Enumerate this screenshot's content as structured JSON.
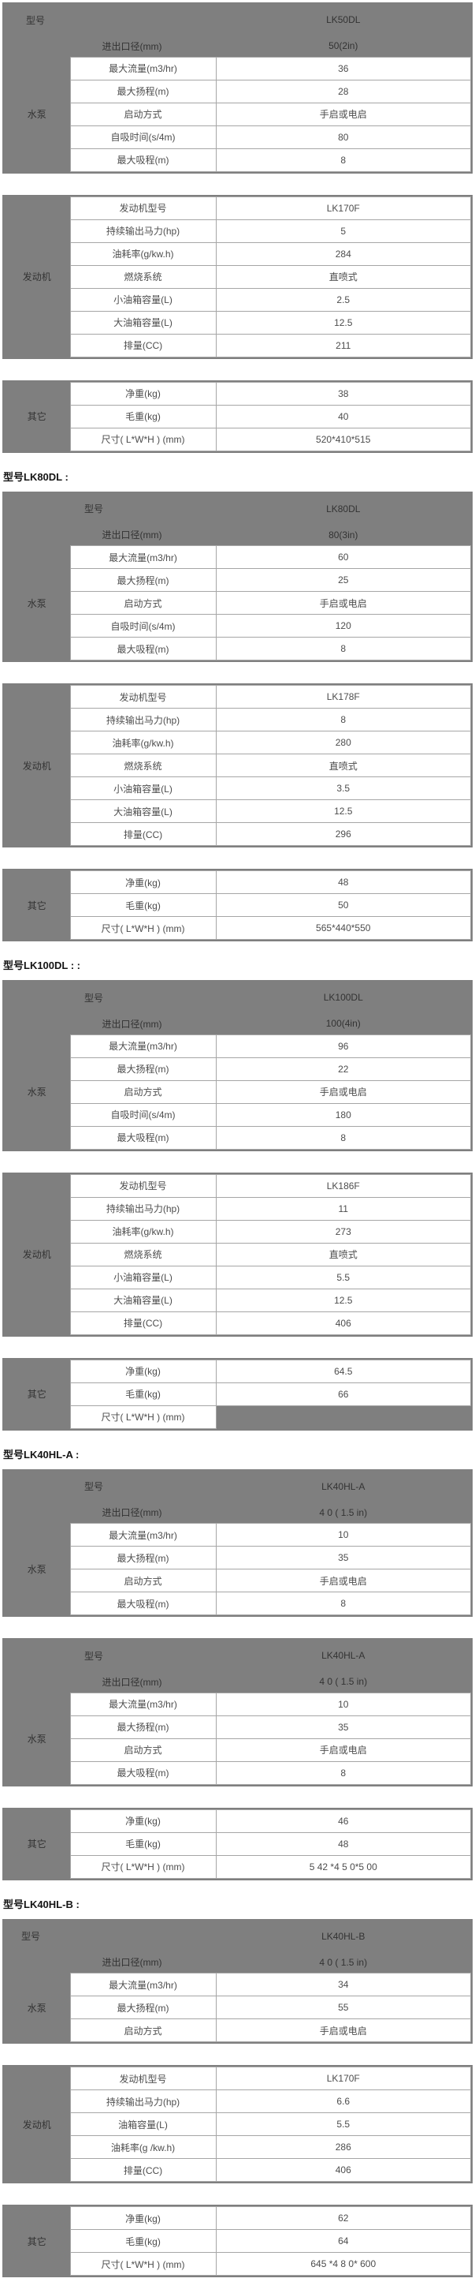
{
  "page": {
    "background": "#ffffff",
    "panel_color": "#7f7f7f",
    "cell_text_color": "#4d4d4d",
    "header_text_color": "#333333",
    "border_color": "#a6a6a6"
  },
  "titles": [
    "型号LK80DL :",
    "型号LK100DL : :",
    "型号LK40HL-A :",
    "型号LK40HL-B :"
  ],
  "tables": [
    {
      "category": "水泵",
      "header": {
        "model_label": "型号",
        "model": "LK50DL",
        "diameter_label": "进出口径(mm)",
        "diameter": "50(2in)"
      },
      "rows": [
        {
          "label": "最大流量(m3/hr)",
          "value": "36"
        },
        {
          "label": "最大扬程(m)",
          "value": "28"
        },
        {
          "label": "启动方式",
          "value": "手启或电启"
        },
        {
          "label": "自吸时间(s/4m)",
          "value": "80"
        },
        {
          "label": "最大吸程(m)",
          "value": "8"
        }
      ]
    },
    {
      "category": "发动机",
      "rows": [
        {
          "label": "发动机型号",
          "value": "LK170F"
        },
        {
          "label": "持续输出马力(hp)",
          "value": "5"
        },
        {
          "label": "油耗率(g/kw.h)",
          "value": "284"
        },
        {
          "label": "燃烧系统",
          "value": "直喷式"
        },
        {
          "label": "小油箱容量(L)",
          "value": "2.5"
        },
        {
          "label": "大油箱容量(L)",
          "value": "12.5"
        },
        {
          "label": "排量(CC)",
          "value": "211"
        }
      ]
    },
    {
      "category": "其它",
      "rows": [
        {
          "label": "净重(kg)",
          "value": "38"
        },
        {
          "label": "毛重(kg)",
          "value": "40"
        },
        {
          "label": "尺寸( L*W*H ) (mm)",
          "value": "520*410*515"
        }
      ]
    },
    {
      "category": "水泵",
      "header": {
        "model_label": "型号",
        "model": "LK80DL",
        "diameter_label": "进出口径(mm)",
        "diameter": "80(3in)"
      },
      "rows": [
        {
          "label": "最大流量(m3/hr)",
          "value": "60"
        },
        {
          "label": "最大扬程(m)",
          "value": "25"
        },
        {
          "label": "启动方式",
          "value": "手启或电启"
        },
        {
          "label": "自吸时间(s/4m)",
          "value": "120"
        },
        {
          "label": "最大吸程(m)",
          "value": "8"
        }
      ]
    },
    {
      "category": "发动机",
      "rows": [
        {
          "label": "发动机型号",
          "value": "LK178F"
        },
        {
          "label": "持续输出马力(hp)",
          "value": "8"
        },
        {
          "label": "油耗率(g/kw.h)",
          "value": "280"
        },
        {
          "label": "燃烧系统",
          "value": "直喷式"
        },
        {
          "label": "小油箱容量(L)",
          "value": "3.5"
        },
        {
          "label": "大油箱容量(L)",
          "value": "12.5"
        },
        {
          "label": "排量(CC)",
          "value": "296"
        }
      ]
    },
    {
      "category": "其它",
      "rows": [
        {
          "label": "净重(kg)",
          "value": "48"
        },
        {
          "label": "毛重(kg)",
          "value": "50"
        },
        {
          "label": "尺寸( L*W*H ) (mm)",
          "value": "565*440*550"
        }
      ]
    },
    {
      "category": "水泵",
      "header": {
        "model_label": "型号",
        "model": "LK100DL",
        "diameter_label": "进出口径(mm)",
        "diameter": "100(4in)"
      },
      "rows": [
        {
          "label": "最大流量(m3/hr)",
          "value": "96"
        },
        {
          "label": "最大扬程(m)",
          "value": "22"
        },
        {
          "label": "启动方式",
          "value": "手启或电启"
        },
        {
          "label": "自吸时间(s/4m)",
          "value": "180"
        },
        {
          "label": "最大吸程(m)",
          "value": "8"
        }
      ]
    },
    {
      "category": "发动机",
      "rows": [
        {
          "label": "发动机型号",
          "value": "LK186F"
        },
        {
          "label": "持续输出马力(hp)",
          "value": "11"
        },
        {
          "label": "油耗率(g/kw.h)",
          "value": "273"
        },
        {
          "label": "燃烧系统",
          "value": "直喷式"
        },
        {
          "label": "小油箱容量(L)",
          "value": "5.5"
        },
        {
          "label": "大油箱容量(L)",
          "value": "12.5"
        },
        {
          "label": "排量(CC)",
          "value": "406"
        }
      ]
    },
    {
      "category": "其它",
      "rows": [
        {
          "label": "净重(kg)",
          "value": "64.5"
        },
        {
          "label": "毛重(kg)",
          "value": "66"
        },
        {
          "label": "尺寸( L*W*H ) (mm)",
          "value": ""
        }
      ]
    },
    {
      "category": "水泵",
      "header": {
        "model_label": "型号",
        "model": "LK40HL-A",
        "diameter_label": "进出口径(mm)",
        "diameter": "4 0 ( 1.5 in)"
      },
      "rows": [
        {
          "label": "最大流量(m3/hr)",
          "value": "10"
        },
        {
          "label": "最大扬程(m)",
          "value": "35"
        },
        {
          "label": "启动方式",
          "value": "手启或电启"
        },
        {
          "label": "最大吸程(m)",
          "value": "8"
        }
      ]
    },
    {
      "category": "水泵",
      "header": {
        "model_label": "型号",
        "model": "LK40HL-A",
        "diameter_label": "进出口径(mm)",
        "diameter": "4 0 ( 1.5 in)"
      },
      "rows": [
        {
          "label": "最大流量(m3/hr)",
          "value": "10"
        },
        {
          "label": "最大扬程(m)",
          "value": "35"
        },
        {
          "label": "启动方式",
          "value": "手启或电启"
        },
        {
          "label": "最大吸程(m)",
          "value": "8"
        }
      ]
    },
    {
      "category": "其它",
      "rows": [
        {
          "label": "净重(kg)",
          "value": "46"
        },
        {
          "label": "毛重(kg)",
          "value": "48"
        },
        {
          "label": "尺寸( L*W*H ) (mm)",
          "value": "5 42 *4 5 0*5 00"
        }
      ]
    },
    {
      "category": "水泵",
      "header": {
        "model_label": "型号",
        "model": "LK40HL-B",
        "diameter_label": "进出口径(mm)",
        "diameter": "4 0 ( 1.5 in)"
      },
      "rows": [
        {
          "label": "最大流量(m3/hr)",
          "value": "34"
        },
        {
          "label": "最大扬程(m)",
          "value": "55"
        },
        {
          "label": "启动方式",
          "value": "手启或电启"
        }
      ]
    },
    {
      "category": "发动机",
      "rows": [
        {
          "label": "发动机型号",
          "value": "LK170F"
        },
        {
          "label": "持续输出马力(hp)",
          "value": "6.6"
        },
        {
          "label": "油箱容量(L)",
          "value": "5.5"
        },
        {
          "label": "油耗率(g /kw.h)",
          "value": "286"
        },
        {
          "label": "排量(CC)",
          "value": "406"
        }
      ]
    },
    {
      "category": "其它",
      "rows": [
        {
          "label": "净重(kg)",
          "value": "62"
        },
        {
          "label": "毛重(kg)",
          "value": "64"
        },
        {
          "label": "尺寸( L*W*H ) (mm)",
          "value": "645 *4 8 0* 600"
        }
      ]
    }
  ]
}
